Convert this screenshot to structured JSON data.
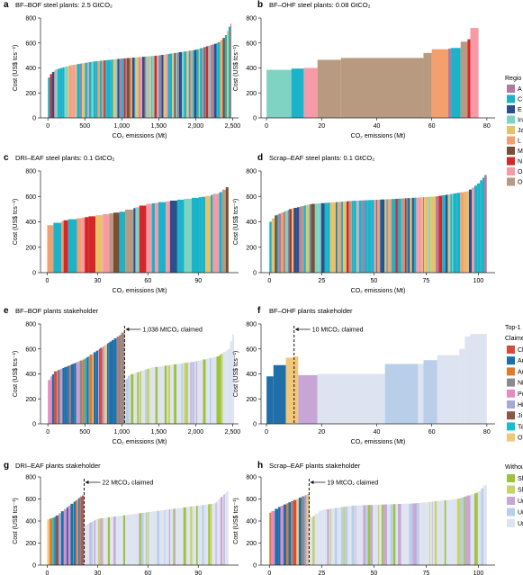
{
  "figure": {
    "region_legend_title": "Regio",
    "stakeholder_legend_title_1": "Top-1",
    "stakeholder_legend_title_2": "Claime",
    "stakeholder_legend_title_3": "Withou",
    "region_legend_items": [
      {
        "label": "A",
        "color": "#b07aa1"
      },
      {
        "label": "C",
        "color": "#1ab3c9"
      },
      {
        "label": "E",
        "color": "#2c4f8c"
      },
      {
        "label": "In",
        "color": "#7fd3c2"
      },
      {
        "label": "Ja",
        "color": "#e8c26a"
      },
      {
        "label": "L",
        "color": "#f3a06e"
      },
      {
        "label": "M",
        "color": "#7a4e34"
      },
      {
        "label": "N",
        "color": "#d62728"
      },
      {
        "label": "O",
        "color": "#f79aa8"
      },
      {
        "label": "O",
        "color": "#b89a80"
      }
    ],
    "stakeholder_legend_items": [
      {
        "label": "Cl",
        "color": "#d94a3a"
      },
      {
        "label": "Ar",
        "color": "#1f6fa8"
      },
      {
        "label": "Ar",
        "color": "#e07b2a"
      },
      {
        "label": "Ni",
        "color": "#8b8b8b"
      },
      {
        "label": "Pc",
        "color": "#e78ac3"
      },
      {
        "label": "Hi",
        "color": "#a6a6d8"
      },
      {
        "label": "Ji",
        "color": "#8c564b"
      },
      {
        "label": "Ta",
        "color": "#17becf"
      },
      {
        "label": "Ot",
        "color": "#f3c77a"
      }
    ],
    "without_legend_items": [
      {
        "label": "Sh",
        "color": "#9ec23a"
      },
      {
        "label": "Sh",
        "color": "#c8d36a"
      },
      {
        "label": "Ur",
        "color": "#c7a6d6"
      },
      {
        "label": "Ur",
        "color": "#b9cfe9"
      },
      {
        "label": "Ur",
        "color": "#dde3f1"
      }
    ]
  },
  "chart_data": [
    {
      "panel": "a",
      "type": "bar",
      "title": "BF–BOF steel plants: 2.5 GtCO₂",
      "xlabel": "CO₂ emissions (Mt)",
      "ylabel": "Cost (US$ tcs⁻¹)",
      "xlim": [
        -100,
        2580
      ],
      "ylim": [
        0,
        800
      ],
      "xticks": [
        "0",
        "500",
        "1,000",
        "1,500",
        "2,000",
        "2,500"
      ],
      "yticks": [
        "0",
        "200",
        "400",
        "600",
        "800"
      ],
      "cost_curve": [
        [
          0,
          300
        ],
        [
          25,
          340
        ],
        [
          100,
          385
        ],
        [
          300,
          420
        ],
        [
          600,
          450
        ],
        [
          1000,
          475
        ],
        [
          1500,
          500
        ],
        [
          2000,
          545
        ],
        [
          2300,
          600
        ],
        [
          2400,
          650
        ],
        [
          2480,
          760
        ]
      ]
    },
    {
      "panel": "b",
      "type": "bar",
      "title": "BF–OHF steel plants: 0.08 GtCO₂",
      "xlabel": "CO₂ emissions (Mt)",
      "ylabel": "Cost (US$ tcs⁻¹)",
      "xlim": [
        -2,
        83
      ],
      "ylim": [
        0,
        800
      ],
      "xticks": [
        "0",
        "20",
        "40",
        "60",
        "80"
      ],
      "yticks": [
        "0",
        "200",
        "400",
        "600",
        "800"
      ],
      "blocks": [
        {
          "x0": 0,
          "x1": 9,
          "v": 385,
          "c": "#7fd3c2"
        },
        {
          "x0": 9,
          "x1": 13.5,
          "v": 395,
          "c": "#1ab3c9"
        },
        {
          "x0": 13.5,
          "x1": 18.5,
          "v": 400,
          "c": "#f79aa8"
        },
        {
          "x0": 18.5,
          "x1": 27,
          "v": 465,
          "c": "#b89a80"
        },
        {
          "x0": 27,
          "x1": 57,
          "v": 480,
          "c": "#b89a80"
        },
        {
          "x0": 57,
          "x1": 60,
          "v": 520,
          "c": "#b89a80"
        },
        {
          "x0": 60,
          "x1": 66,
          "v": 550,
          "c": "#f3a06e"
        },
        {
          "x0": 66,
          "x1": 67,
          "v": 555,
          "c": "#b07aa1"
        },
        {
          "x0": 67,
          "x1": 70.5,
          "v": 560,
          "c": "#1ab3c9"
        },
        {
          "x0": 70.5,
          "x1": 73,
          "v": 610,
          "c": "#b89a80"
        },
        {
          "x0": 73,
          "x1": 74,
          "v": 630,
          "c": "#d62728"
        },
        {
          "x0": 74,
          "x1": 77,
          "v": 720,
          "c": "#f79aa8"
        }
      ]
    },
    {
      "panel": "c",
      "type": "bar",
      "title": "DRI–EAF steel plants: 0.1 GtCO₂",
      "xlabel": "CO₂ emissions (Mt)",
      "ylabel": "Cost (US$ tcs⁻¹)",
      "xlim": [
        -4,
        114
      ],
      "ylim": [
        0,
        800
      ],
      "xticks": [
        "0",
        "30",
        "60",
        "90"
      ],
      "yticks": [
        "0",
        "200",
        "400",
        "600",
        "800"
      ],
      "cost_curve": [
        [
          0,
          365
        ],
        [
          10,
          410
        ],
        [
          25,
          440
        ],
        [
          45,
          480
        ],
        [
          60,
          540
        ],
        [
          80,
          575
        ],
        [
          95,
          600
        ],
        [
          103,
          630
        ],
        [
          108,
          680
        ]
      ]
    },
    {
      "panel": "d",
      "type": "bar",
      "title": "Scrap–EAF steel plants: 0.1 GtCO₂",
      "xlabel": "CO₂ emissions (Mt)",
      "ylabel": "Cost (US$ tcs⁻¹)",
      "xlim": [
        -4,
        108
      ],
      "ylim": [
        0,
        800
      ],
      "xticks": [
        "0",
        "25",
        "50",
        "75",
        "100"
      ],
      "yticks": [
        "0",
        "200",
        "400",
        "600",
        "800"
      ],
      "cost_curve": [
        [
          0,
          390
        ],
        [
          3,
          450
        ],
        [
          10,
          500
        ],
        [
          20,
          540
        ],
        [
          40,
          565
        ],
        [
          60,
          580
        ],
        [
          80,
          600
        ],
        [
          95,
          640
        ],
        [
          100,
          700
        ],
        [
          104,
          780
        ]
      ]
    },
    {
      "panel": "e",
      "type": "bar",
      "title": "BF–BOF plants stakeholder",
      "xlabel": "CO₂ emissions (Mt)",
      "ylabel": "Cost (US$ tcs⁻¹)",
      "xlim": [
        -100,
        2580
      ],
      "ylim": [
        0,
        800
      ],
      "xticks": [
        "0",
        "500",
        "1,000",
        "1,500",
        "2,000",
        "2,500"
      ],
      "yticks": [
        "0",
        "200",
        "400",
        "600",
        "800"
      ],
      "claimed_mt": 1038,
      "annotation": "1,038 MtCO₂ claimed",
      "cost_curve": [
        [
          0,
          300
        ],
        [
          20,
          360
        ],
        [
          100,
          420
        ],
        [
          300,
          470
        ],
        [
          500,
          520
        ],
        [
          800,
          640
        ],
        [
          1000,
          720
        ],
        [
          1038,
          760
        ],
        [
          1045,
          340
        ],
        [
          1100,
          390
        ],
        [
          1400,
          450
        ],
        [
          2000,
          500
        ],
        [
          2300,
          540
        ],
        [
          2450,
          600
        ],
        [
          2520,
          740
        ]
      ]
    },
    {
      "panel": "f",
      "type": "bar",
      "title": "BF–OHF plants stakeholder",
      "xlabel": "CO₂ emissions (Mt)",
      "ylabel": "Cost (US$ tcs⁻¹)",
      "xlim": [
        -2,
        83
      ],
      "ylim": [
        0,
        800
      ],
      "xticks": [
        "0",
        "20",
        "40",
        "60",
        "80"
      ],
      "yticks": [
        "0",
        "200",
        "400",
        "600",
        "800"
      ],
      "claimed_mt": 10,
      "annotation": "10 MtCO₂ claimed",
      "blocks": [
        {
          "x0": 0,
          "x1": 2.5,
          "v": 380,
          "c": "#1f6fa8"
        },
        {
          "x0": 2.5,
          "x1": 7,
          "v": 470,
          "c": "#1f6fa8"
        },
        {
          "x0": 7,
          "x1": 10,
          "v": 530,
          "c": "#f3c77a"
        },
        {
          "x0": 10,
          "x1": 11.5,
          "v": 540,
          "c": "#f3c77a"
        },
        {
          "x0": 11.5,
          "x1": 18.5,
          "v": 390,
          "c": "#c7a6d6"
        },
        {
          "x0": 18.5,
          "x1": 43,
          "v": 400,
          "c": "#dde3f1"
        },
        {
          "x0": 43,
          "x1": 55,
          "v": 480,
          "c": "#b9cfe9"
        },
        {
          "x0": 55,
          "x1": 57,
          "v": 480,
          "c": "#dde3f1"
        },
        {
          "x0": 57,
          "x1": 62,
          "v": 510,
          "c": "#b9cfe9"
        },
        {
          "x0": 62,
          "x1": 70,
          "v": 550,
          "c": "#dde3f1"
        },
        {
          "x0": 70,
          "x1": 72,
          "v": 600,
          "c": "#dde3f1"
        },
        {
          "x0": 72,
          "x1": 74,
          "v": 700,
          "c": "#dde3f1"
        },
        {
          "x0": 74,
          "x1": 80,
          "v": 720,
          "c": "#dde3f1"
        }
      ]
    },
    {
      "panel": "g",
      "type": "bar",
      "title": "DRI–EAF plants stakeholder",
      "xlabel": "CO₂ emissions (Mt)",
      "ylabel": "Cost (US$ tcs⁻¹)",
      "xlim": [
        -4,
        114
      ],
      "ylim": [
        0,
        800
      ],
      "xticks": [
        "0",
        "30",
        "60",
        "90"
      ],
      "yticks": [
        "0",
        "200",
        "400",
        "600",
        "800"
      ],
      "claimed_mt": 22,
      "annotation": "22 MtCO₂ claimed",
      "cost_curve": [
        [
          0,
          410
        ],
        [
          5,
          440
        ],
        [
          10,
          500
        ],
        [
          15,
          560
        ],
        [
          20,
          620
        ],
        [
          22,
          640
        ],
        [
          22.5,
          360
        ],
        [
          30,
          420
        ],
        [
          50,
          460
        ],
        [
          80,
          520
        ],
        [
          100,
          560
        ],
        [
          108,
          680
        ]
      ]
    },
    {
      "panel": "h",
      "type": "bar",
      "title": "Scrap–EAF plants stakeholder",
      "xlabel": "CO₂ emissions (Mt)",
      "ylabel": "Cost (US$ tcs⁻¹)",
      "xlim": [
        -4,
        108
      ],
      "ylim": [
        0,
        800
      ],
      "xticks": [
        "0",
        "25",
        "50",
        "75",
        "100"
      ],
      "yticks": [
        "0",
        "200",
        "400",
        "600",
        "800"
      ],
      "claimed_mt": 19,
      "annotation": "19 MtCO₂ claimed",
      "cost_curve": [
        [
          0,
          470
        ],
        [
          5,
          530
        ],
        [
          12,
          590
        ],
        [
          18,
          640
        ],
        [
          19,
          650
        ],
        [
          19.5,
          420
        ],
        [
          25,
          500
        ],
        [
          40,
          540
        ],
        [
          70,
          560
        ],
        [
          90,
          600
        ],
        [
          100,
          660
        ],
        [
          104,
          740
        ]
      ]
    }
  ]
}
